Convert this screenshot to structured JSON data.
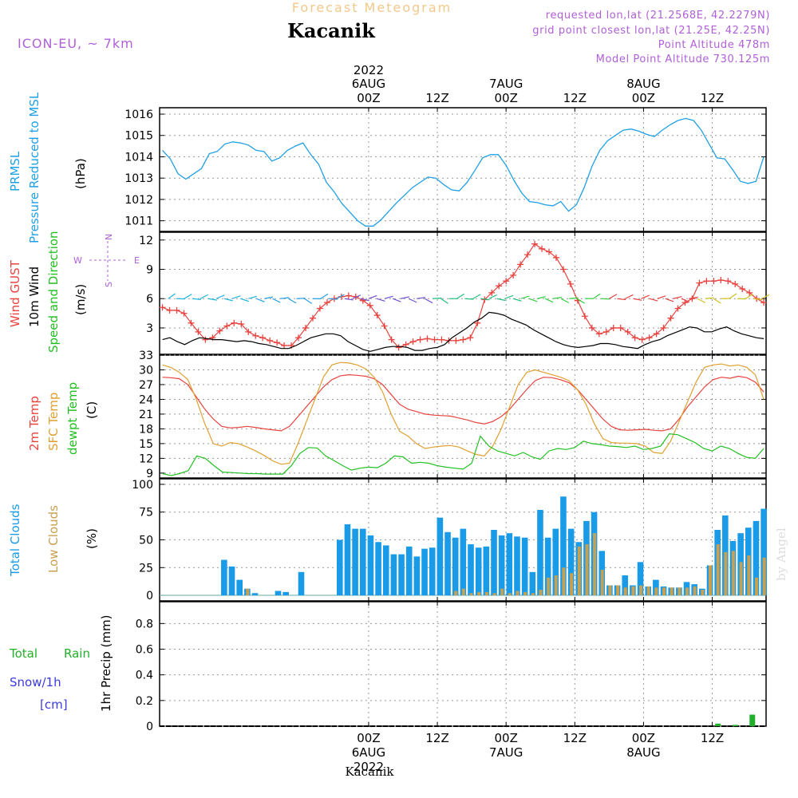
{
  "header": {
    "top_title": "Forecast Meteogram",
    "station": "Kacanik",
    "model": "ICON-EU, ~ 7km",
    "requested": "requested lon,lat (21.2568E, 42.2279N)",
    "grid_point": "grid point closest lon,lat (21.25E, 42.25N)",
    "point_alt": "Point Altitude 478m",
    "model_alt": "Model Point Altitude 730.125m"
  },
  "time_axis": {
    "top_labels": [
      {
        "l1": "2022",
        "l2": "6AUG",
        "l3": "00Z",
        "h": 26
      },
      {
        "l1": "",
        "l2": "",
        "l3": "12Z",
        "h": 38
      },
      {
        "l1": "",
        "l2": "7AUG",
        "l3": "00Z",
        "h": 50
      },
      {
        "l1": "",
        "l2": "",
        "l3": "12Z",
        "h": 62
      },
      {
        "l1": "",
        "l2": "8AUG",
        "l3": "00Z",
        "h": 74
      },
      {
        "l1": "",
        "l2": "",
        "l3": "12Z",
        "h": 86
      }
    ],
    "bottom_labels": [
      {
        "l1": "00Z",
        "l2": "6AUG",
        "l3": "2022",
        "h": 26
      },
      {
        "l1": "12Z",
        "l2": "",
        "l3": "",
        "h": 38
      },
      {
        "l1": "00Z",
        "l2": "7AUG",
        "l3": "",
        "h": 50
      },
      {
        "l1": "12Z",
        "l2": "",
        "l3": "",
        "h": 62
      },
      {
        "l1": "00Z",
        "l2": "8AUG",
        "l3": "",
        "h": 74
      },
      {
        "l1": "12Z",
        "l2": "",
        "l3": "",
        "h": 86
      }
    ],
    "footer": "Kacanik"
  },
  "watermark": "by Angel",
  "colors": {
    "pressure": "#1fa0e6",
    "gust": "#e8433f",
    "wind": "#000000",
    "sfc": "#e0a030",
    "dew": "#22c022",
    "total_clouds": "#1a9be8",
    "low_clouds": "#c8a050",
    "rain": "#22b02a",
    "snow": "#3a3ae0",
    "purple": "#b060d8",
    "orange": "#f0c070"
  },
  "chart_data": [
    {
      "type": "line",
      "panel": "pressure",
      "labels": {
        "l1": "PRMSL",
        "l2": "Pressure Reduced to MSL",
        "unit": "(hPa)"
      },
      "ylim": [
        1010.5,
        1016.3
      ],
      "yticks": [
        1011,
        1012,
        1013,
        1014,
        1015,
        1016
      ],
      "x_hours": [
        0,
        1,
        2,
        3,
        4,
        5,
        6,
        7,
        8,
        9,
        10,
        11,
        12,
        13,
        14,
        15,
        16,
        17,
        18,
        19,
        20,
        21,
        22,
        23,
        24,
        25,
        26,
        27,
        28,
        29,
        30,
        31,
        32,
        33,
        34,
        35,
        36,
        37,
        38,
        39,
        40,
        41,
        42,
        43,
        44,
        45,
        46,
        47,
        48,
        49,
        50,
        51,
        52,
        53,
        54,
        55,
        56,
        57,
        58,
        59,
        60,
        61,
        62,
        63,
        64,
        65,
        66,
        67,
        68,
        69,
        70,
        71,
        72,
        73,
        74,
        75,
        76,
        77,
        78,
        79,
        80,
        81,
        82,
        83,
        84,
        85,
        86,
        87,
        88,
        89,
        90,
        91,
        92,
        93,
        94,
        95
      ],
      "series": [
        {
          "name": "PRMSL",
          "values": [
            1014.3,
            1013.9,
            1013.2,
            1012.95,
            1013.2,
            1013.45,
            1014.15,
            1014.25,
            1014.6,
            1014.7,
            1014.65,
            1014.55,
            1014.3,
            1014.25,
            1013.8,
            1013.95,
            1014.3,
            1014.5,
            1014.65,
            1014.1,
            1013.65,
            1012.8,
            1012.35,
            1011.8,
            1011.4,
            1011.0,
            1010.75,
            1010.75,
            1011.05,
            1011.45,
            1011.85,
            1012.2,
            1012.55,
            1012.8,
            1013.05,
            1013.0,
            1012.7,
            1012.45,
            1012.4,
            1012.8,
            1013.35,
            1013.95,
            1014.1,
            1014.1,
            1013.6,
            1012.9,
            1012.3,
            1011.9,
            1011.85,
            1011.75,
            1011.7,
            1011.9,
            1011.45,
            1011.75,
            1012.55,
            1013.55,
            1014.3,
            1014.75,
            1015.0,
            1015.25,
            1015.3,
            1015.2,
            1015.05,
            1014.95,
            1015.25,
            1015.5,
            1015.7,
            1015.8,
            1015.7,
            1015.25,
            1014.6,
            1013.95,
            1013.9,
            1013.4,
            1012.85,
            1012.75,
            1012.85,
            1014.0
          ]
        }
      ]
    },
    {
      "type": "line",
      "panel": "wind",
      "labels": {
        "gust": "Wind GUST",
        "wind": "10m Wind",
        "dir": "Speed and Direction",
        "unit": "(m/s)"
      },
      "compass": {
        "n": "N",
        "s": "S",
        "w": "W",
        "e": "E"
      },
      "ylim": [
        0.3,
        12.8
      ],
      "yticks": [
        3,
        6,
        9,
        12
      ],
      "series": [
        {
          "name": "Wind GUST",
          "values": [
            5.1,
            4.8,
            4.8,
            4.5,
            3.5,
            2.6,
            1.8,
            2.0,
            2.7,
            3.2,
            3.5,
            3.4,
            2.6,
            2.2,
            2.0,
            1.7,
            1.5,
            1.2,
            1.2,
            2.0,
            3.0,
            4.0,
            5.0,
            5.6,
            6.0,
            6.2,
            6.3,
            6.2,
            5.8,
            5.3,
            4.3,
            3.2,
            1.8,
            1.0,
            1.3,
            1.6,
            1.8,
            1.9,
            1.8,
            1.8,
            1.7,
            1.7,
            1.8,
            2.0,
            3.5,
            5.9,
            6.6,
            7.3,
            7.8,
            8.4,
            9.5,
            10.5,
            11.6,
            11.1,
            10.8,
            10.2,
            9.0,
            7.5,
            5.8,
            4.2,
            3.0,
            2.4,
            2.6,
            3.0,
            3.0,
            2.6,
            2.0,
            1.8,
            2.0,
            2.4,
            3.0,
            4.0,
            5.0,
            5.6,
            6.0,
            7.6,
            7.8,
            7.8,
            7.9,
            7.8,
            7.5,
            7.0,
            6.6,
            6.0,
            5.6
          ]
        },
        {
          "name": "10m Wind",
          "values": [
            1.8,
            2.0,
            1.6,
            1.3,
            1.7,
            2.0,
            1.9,
            1.8,
            1.8,
            1.7,
            1.6,
            1.7,
            1.6,
            1.4,
            1.3,
            1.1,
            0.9,
            0.9,
            1.2,
            1.6,
            2.0,
            2.2,
            2.4,
            2.4,
            2.2,
            1.6,
            1.2,
            0.8,
            0.6,
            0.8,
            1.0,
            1.1,
            1.1,
            1.0,
            0.7,
            0.7,
            0.9,
            1.0,
            1.3,
            2.0,
            2.5,
            3.0,
            3.6,
            4.0,
            4.6,
            4.5,
            4.3,
            3.9,
            3.6,
            3.3,
            2.8,
            2.4,
            2.0,
            1.6,
            1.3,
            1.1,
            1.0,
            1.1,
            1.2,
            1.4,
            1.4,
            1.3,
            1.1,
            1.0,
            0.9,
            1.3,
            1.6,
            1.8,
            2.2,
            2.5,
            2.8,
            3.1,
            3.0,
            2.6,
            2.6,
            2.9,
            3.1,
            2.7,
            2.4,
            2.2,
            2.0,
            1.9
          ]
        }
      ]
    },
    {
      "type": "line",
      "panel": "temperature",
      "labels": {
        "t2m": "2m Temp",
        "sfc": "SFC Temp",
        "dew": "dewpt Temp",
        "unit": "(C)"
      },
      "ylim": [
        8,
        33
      ],
      "yticks": [
        9,
        12,
        15,
        18,
        21,
        24,
        27,
        30,
        33
      ],
      "series": [
        {
          "name": "2m Temp",
          "values": [
            28.5,
            28.4,
            28.2,
            27.0,
            24.5,
            22.0,
            20.0,
            18.5,
            18.2,
            18.3,
            18.5,
            18.3,
            18.0,
            17.8,
            17.6,
            18.5,
            20.5,
            22.5,
            24.5,
            26.5,
            28.0,
            28.8,
            29.0,
            28.9,
            28.7,
            28.2,
            27.0,
            25.0,
            23.0,
            22.0,
            21.5,
            21.0,
            20.8,
            20.7,
            20.6,
            20.2,
            19.8,
            19.3,
            19.0,
            19.5,
            20.5,
            22.0,
            24.0,
            26.0,
            27.8,
            28.5,
            28.4,
            28.0,
            27.4,
            26.0,
            24.0,
            22.0,
            20.0,
            18.5,
            17.8,
            17.7,
            17.8,
            17.9,
            17.7,
            17.6,
            18.0,
            20.0,
            22.5,
            24.5,
            26.5,
            28.0,
            28.5,
            28.3,
            28.7,
            28.4,
            27.5,
            25.5
          ]
        },
        {
          "name": "SFC Temp",
          "values": [
            31.0,
            30.5,
            29.5,
            28.0,
            24.0,
            19.0,
            15.0,
            14.5,
            15.2,
            15.0,
            14.3,
            13.5,
            12.6,
            11.5,
            10.8,
            11.0,
            15.0,
            19.5,
            24.0,
            28.5,
            31.0,
            31.5,
            31.4,
            31.0,
            30.2,
            28.5,
            25.5,
            21.0,
            17.5,
            16.5,
            15.0,
            14.0,
            14.3,
            14.5,
            14.6,
            14.3,
            13.5,
            12.8,
            12.5,
            14.5,
            18.0,
            22.5,
            27.0,
            29.5,
            30.0,
            29.5,
            29.0,
            28.5,
            27.8,
            26.0,
            23.0,
            19.0,
            16.0,
            15.2,
            15.1,
            15.1,
            15.0,
            14.5,
            13.2,
            13.0,
            15.5,
            19.5,
            23.5,
            27.5,
            30.5,
            31.0,
            31.2,
            30.8,
            31.0,
            30.5,
            29.0,
            24.0
          ]
        },
        {
          "name": "dewpt Temp",
          "values": [
            8.9,
            8.5,
            8.9,
            9.5,
            12.5,
            12.0,
            10.5,
            9.2,
            9.1,
            9.0,
            8.9,
            8.9,
            8.8,
            8.8,
            8.8,
            10.5,
            13.0,
            14.2,
            14.1,
            12.5,
            11.5,
            10.5,
            9.6,
            10.0,
            10.2,
            10.1,
            11.0,
            12.5,
            12.3,
            11.0,
            11.2,
            11.0,
            10.5,
            10.2,
            10.0,
            9.8,
            11.0,
            16.5,
            14.5,
            13.5,
            13.0,
            12.5,
            13.2,
            12.3,
            11.8,
            13.5,
            14.0,
            13.8,
            14.2,
            15.5,
            15.0,
            14.8,
            14.5,
            14.4,
            14.2,
            14.5,
            13.8,
            14.0,
            14.5,
            17.0,
            16.8,
            16.0,
            15.2,
            14.0,
            13.5,
            14.5,
            14.0,
            13.0,
            12.2,
            12.0,
            14.0
          ]
        }
      ]
    },
    {
      "type": "bar",
      "panel": "clouds",
      "labels": {
        "total": "Total Clouds",
        "low": "Low Clouds",
        "unit": "(%)"
      },
      "ylim": [
        -5,
        105
      ],
      "yticks": [
        0,
        25,
        50,
        75,
        100
      ],
      "series": [
        {
          "name": "Total Clouds",
          "values": [
            0,
            0,
            0,
            0,
            0,
            0,
            0,
            0,
            32,
            26,
            14,
            6,
            2,
            0,
            0,
            4,
            3,
            0,
            21,
            0,
            0,
            0,
            0,
            50,
            64,
            60,
            60,
            54,
            48,
            45,
            37,
            37,
            44,
            35,
            42,
            43,
            70,
            57,
            52,
            60,
            46,
            43,
            44,
            59,
            54,
            56,
            53,
            52,
            21,
            77,
            52,
            60,
            89,
            60,
            48,
            67,
            75,
            40,
            9,
            9,
            18,
            9,
            30,
            8,
            14,
            8,
            7,
            7,
            12,
            10,
            6,
            27,
            59,
            72,
            49,
            56,
            61,
            67,
            78
          ]
        },
        {
          "name": "Low Clouds",
          "values": [
            0,
            0,
            0,
            0,
            0,
            0,
            0,
            0,
            0,
            0,
            0,
            6,
            0,
            0,
            0,
            0,
            0,
            0,
            0,
            0,
            0,
            0,
            0,
            0,
            0,
            0,
            0,
            0,
            0,
            0,
            0,
            0,
            0,
            0,
            0,
            0,
            0,
            0,
            4,
            6,
            2,
            3,
            3,
            2,
            6,
            2,
            4,
            3,
            2,
            5,
            16,
            18,
            25,
            20,
            44,
            46,
            56,
            23,
            9,
            9,
            7,
            8,
            9,
            8,
            7,
            7,
            7,
            7,
            7,
            8,
            5,
            27,
            46,
            39,
            40,
            30,
            36,
            16,
            34
          ]
        }
      ]
    },
    {
      "type": "bar",
      "panel": "precip",
      "labels": {
        "total": "Total",
        "rain": "Rain",
        "snow": "Snow/1h",
        "cm": "[cm]",
        "unit": "1hr Precip (mm)"
      },
      "ylim": [
        0,
        0.97
      ],
      "yticks": [
        0,
        0.2,
        0.4,
        0.6,
        0.8
      ],
      "yticklabels": [
        "0",
        "0.2",
        "0.4",
        "0.6",
        "0.8"
      ],
      "series": [
        {
          "name": "Rain",
          "values": [
            {
              "h": 87,
              "v": 0.02
            },
            {
              "h": 90,
              "v": 0.01
            },
            {
              "h": 93,
              "v": 0.09
            }
          ]
        }
      ]
    }
  ]
}
